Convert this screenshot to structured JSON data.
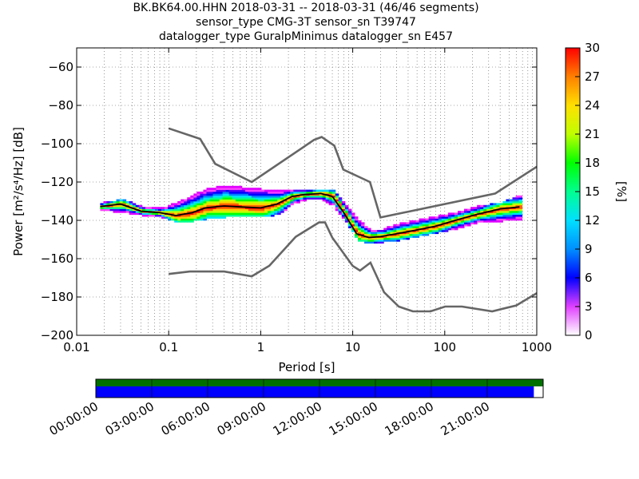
{
  "title_lines": [
    "BK.BK64.00.HHN   2018-03-31 -- 2018-03-31  (46/46 segments)",
    "sensor_type CMG-3T sensor_sn T39747",
    "datalogger_type GuralpMinimus datalogger_sn E457"
  ],
  "chart_data": {
    "type": "heatmap",
    "xlabel": "Period [s]",
    "ylabel": "Power [m²/s⁴/Hz] [dB]",
    "xscale": "log",
    "xlim": [
      0.01,
      1000
    ],
    "ylim": [
      -200,
      -50
    ],
    "xticks": [
      {
        "value": 0.01,
        "label": "0.01"
      },
      {
        "value": 0.1,
        "label": "0.1"
      },
      {
        "value": 1,
        "label": "1"
      },
      {
        "value": 10,
        "label": "10"
      },
      {
        "value": 100,
        "label": "100"
      },
      {
        "value": 1000,
        "label": "1000"
      }
    ],
    "yticks": [
      {
        "value": -60,
        "label": "−60"
      },
      {
        "value": -80,
        "label": "−80"
      },
      {
        "value": -100,
        "label": "−100"
      },
      {
        "value": -120,
        "label": "−120"
      },
      {
        "value": -140,
        "label": "−140"
      },
      {
        "value": -160,
        "label": "−160"
      },
      {
        "value": -180,
        "label": "−180"
      },
      {
        "value": -200,
        "label": "−200"
      }
    ],
    "grid": true,
    "colorbar": {
      "label": "[%]",
      "range": [
        0,
        30
      ],
      "ticks": [
        "0",
        "3",
        "6",
        "9",
        "12",
        "15",
        "18",
        "21",
        "24",
        "27",
        "30"
      ]
    },
    "noise_models": {
      "high": [
        [
          0.1,
          -92
        ],
        [
          0.22,
          -97.5
        ],
        [
          0.32,
          -110.5
        ],
        [
          0.8,
          -120
        ],
        [
          3.8,
          -98
        ],
        [
          4.6,
          -96.5
        ],
        [
          6.3,
          -101
        ],
        [
          7.9,
          -113.5
        ],
        [
          15.4,
          -120
        ],
        [
          20,
          -138.5
        ],
        [
          354,
          -126
        ],
        [
          1000,
          -112
        ]
      ],
      "low": [
        [
          0.1,
          -168
        ],
        [
          0.17,
          -166.7
        ],
        [
          0.4,
          -166.7
        ],
        [
          0.8,
          -169.2
        ],
        [
          1.24,
          -163.7
        ],
        [
          2.4,
          -148.6
        ],
        [
          4.3,
          -141.1
        ],
        [
          5,
          -141.1
        ],
        [
          6,
          -149
        ],
        [
          10,
          -163.8
        ],
        [
          12,
          -166.2
        ],
        [
          15.6,
          -162.1
        ],
        [
          21.9,
          -177.5
        ],
        [
          31.6,
          -185
        ],
        [
          45,
          -187.5
        ],
        [
          70,
          -187.5
        ],
        [
          101,
          -185
        ],
        [
          154,
          -185
        ],
        [
          328,
          -187.5
        ],
        [
          600,
          -184.4
        ],
        [
          1000,
          -178
        ]
      ]
    },
    "psd_bands": [
      {
        "period": 0.018,
        "lo": -134.5,
        "hi": -131,
        "median": -132.8
      },
      {
        "period": 0.03,
        "lo": -135.5,
        "hi": -129.5,
        "median": -131.5
      },
      {
        "period": 0.05,
        "lo": -137,
        "hi": -133,
        "median": -135.2
      },
      {
        "period": 0.08,
        "lo": -138,
        "hi": -134,
        "median": -136
      },
      {
        "period": 0.12,
        "lo": -140.5,
        "hi": -131,
        "median": -137.5
      },
      {
        "period": 0.18,
        "lo": -140,
        "hi": -127,
        "median": -136
      },
      {
        "period": 0.25,
        "lo": -139,
        "hi": -124,
        "median": -133.5
      },
      {
        "period": 0.4,
        "lo": -138,
        "hi": -122,
        "median": -132.5
      },
      {
        "period": 0.6,
        "lo": -137.5,
        "hi": -123,
        "median": -133
      },
      {
        "period": 1.0,
        "lo": -138,
        "hi": -124,
        "median": -133.5
      },
      {
        "period": 1.5,
        "lo": -136.5,
        "hi": -125,
        "median": -131.5
      },
      {
        "period": 2.2,
        "lo": -131,
        "hi": -124,
        "median": -127.5
      },
      {
        "period": 3.0,
        "lo": -129,
        "hi": -124,
        "median": -126.5
      },
      {
        "period": 4.5,
        "lo": -129,
        "hi": -124,
        "median": -126
      },
      {
        "period": 6.0,
        "lo": -132,
        "hi": -124,
        "median": -127.5
      },
      {
        "period": 8.0,
        "lo": -140,
        "hi": -132,
        "median": -136
      },
      {
        "period": 11,
        "lo": -150,
        "hi": -140,
        "median": -147
      },
      {
        "period": 15,
        "lo": -152,
        "hi": -145,
        "median": -149
      },
      {
        "period": 20,
        "lo": -151,
        "hi": -145,
        "median": -148.5
      },
      {
        "period": 30,
        "lo": -150,
        "hi": -142,
        "median": -147
      },
      {
        "period": 50,
        "lo": -148,
        "hi": -140,
        "median": -145
      },
      {
        "period": 80,
        "lo": -146,
        "hi": -138,
        "median": -143
      },
      {
        "period": 130,
        "lo": -144,
        "hi": -136,
        "median": -140
      },
      {
        "period": 220,
        "lo": -141,
        "hi": -133,
        "median": -137
      },
      {
        "period": 400,
        "lo": -140,
        "hi": -131,
        "median": -134
      },
      {
        "period": 650,
        "lo": -139,
        "hi": -127,
        "median": -133
      }
    ],
    "timeline": {
      "tick_labels": [
        "00:00:00",
        "03:00:00",
        "06:00:00",
        "09:00:00",
        "12:00:00",
        "15:00:00",
        "18:00:00",
        "21:00:00"
      ],
      "span_hours": 24,
      "data_coverage": [
        [
          0,
          23.5
        ]
      ],
      "used_coverage": [
        [
          0,
          24
        ]
      ]
    }
  }
}
